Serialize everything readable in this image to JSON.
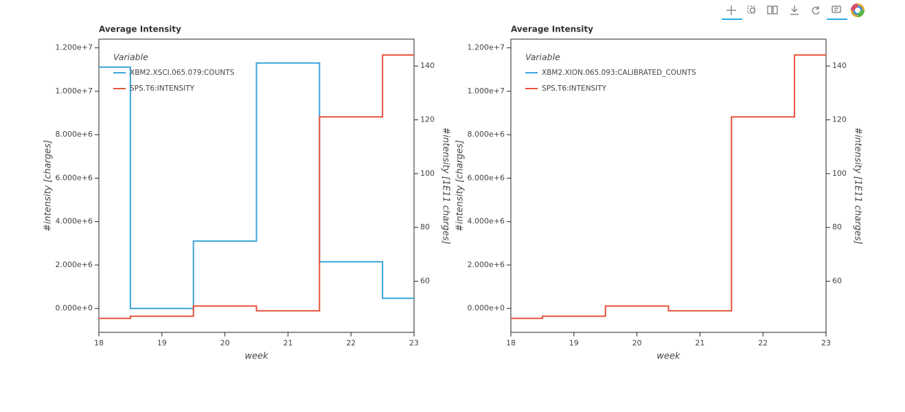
{
  "chart_data": [
    {
      "type": "line",
      "step": "mid",
      "title": "Average Intensity",
      "x_label": "week",
      "y_label": "#intensity [charges]",
      "y2_label": "#intensity [1E11 charges]",
      "legend_title": "Variable",
      "legend": "top-left",
      "x": [
        18,
        19,
        20,
        21,
        22,
        23
      ],
      "series": [
        {
          "name": "XBM2.XSCI.065.079:COUNTS",
          "color": "#3ba3d8",
          "values": [
            11110000,
            0,
            3100000,
            11300000,
            2150000,
            470000
          ]
        },
        {
          "name": "SPS.T6:INTENSITY",
          "color": "#e8513a",
          "axis": "y2",
          "values": [
            46.2,
            47.0,
            50.8,
            49.0,
            121.1,
            144.1
          ]
        }
      ],
      "xlim": [
        18,
        23
      ],
      "xticks": [
        18,
        19,
        20,
        21,
        22,
        23
      ],
      "ylim": [
        -1100000,
        12400000
      ],
      "yticks": [
        {
          "value": 0,
          "label": "0.000e+0"
        },
        {
          "value": 2000000,
          "label": "2.000e+6"
        },
        {
          "value": 4000000,
          "label": "4.000e+6"
        },
        {
          "value": 6000000,
          "label": "6.000e+6"
        },
        {
          "value": 8000000,
          "label": "8.000e+6"
        },
        {
          "value": 10000000,
          "label": "1.000e+7"
        },
        {
          "value": 12000000,
          "label": "1.200e+7"
        }
      ],
      "y2lim": [
        41,
        150
      ],
      "y2ticks": [
        60,
        80,
        100,
        120,
        140
      ]
    },
    {
      "type": "line",
      "step": "mid",
      "title": "Average Intensity",
      "x_label": "week",
      "y_label": "#intensity [charges]",
      "y2_label": "#intensity [1E11 charges]",
      "legend_title": "Variable",
      "legend": "top-left",
      "x": [
        18,
        19,
        20,
        21,
        22,
        23
      ],
      "series": [
        {
          "name": "XBM2.XION.065.093:CALIBRATED_COUNTS",
          "color": "#3ba3d8",
          "values": [
            null,
            null,
            null,
            null,
            null,
            null
          ]
        },
        {
          "name": "SPS.T6:INTENSITY",
          "color": "#e8513a",
          "axis": "y2",
          "values": [
            46.2,
            47.0,
            50.8,
            49.0,
            121.1,
            144.1
          ]
        }
      ],
      "xlim": [
        18,
        23
      ],
      "xticks": [
        18,
        19,
        20,
        21,
        22,
        23
      ],
      "ylim": [
        -1100000,
        12400000
      ],
      "yticks": [
        {
          "value": 0,
          "label": "0.000e+0"
        },
        {
          "value": 2000000,
          "label": "2.000e+6"
        },
        {
          "value": 4000000,
          "label": "4.000e+6"
        },
        {
          "value": 6000000,
          "label": "6.000e+6"
        },
        {
          "value": 8000000,
          "label": "8.000e+6"
        },
        {
          "value": 10000000,
          "label": "1.000e+7"
        },
        {
          "value": 12000000,
          "label": "1.200e+7"
        }
      ],
      "y2lim": [
        41,
        150
      ],
      "y2ticks": [
        60,
        80,
        100,
        120,
        140
      ]
    }
  ]
}
